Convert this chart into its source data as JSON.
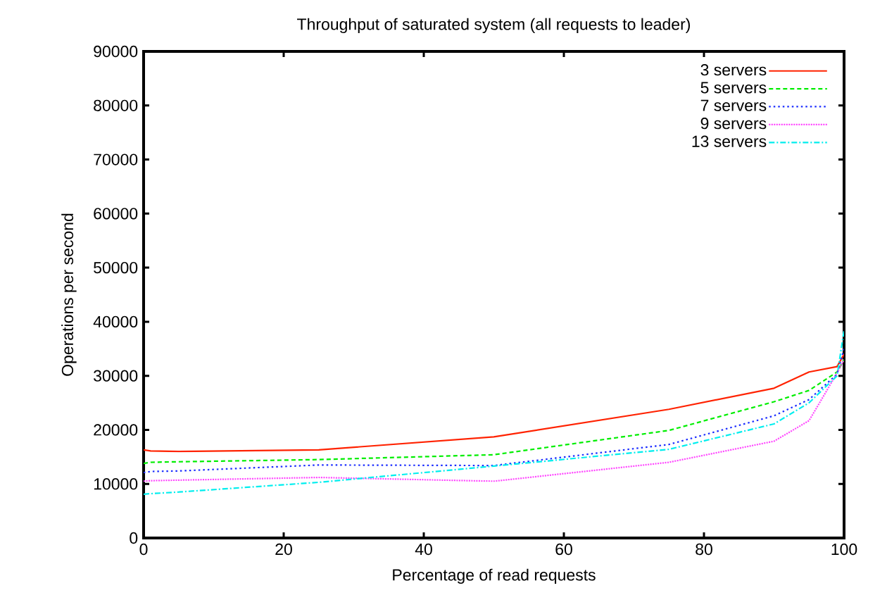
{
  "chart_data": {
    "type": "line",
    "title": "Throughput of saturated system (all requests to leader)",
    "xlabel": "Percentage of read requests",
    "ylabel": "Operations per second",
    "x": [
      0,
      1,
      5,
      25,
      50,
      75,
      90,
      95,
      99,
      100
    ],
    "series": [
      {
        "name": "3 servers",
        "color": "#ff2200",
        "line_style": "solid",
        "values": [
          16300,
          16100,
          16000,
          16300,
          18700,
          23800,
          27700,
          30700,
          31700,
          34000
        ]
      },
      {
        "name": "5 servers",
        "color": "#00ee00",
        "line_style": "dashed",
        "values": [
          13800,
          14000,
          14100,
          14500,
          15400,
          19900,
          25200,
          27300,
          30700,
          33000
        ]
      },
      {
        "name": "7 servers",
        "color": "#1a2cff",
        "line_style": "dotted",
        "values": [
          12100,
          12300,
          12400,
          13500,
          13400,
          17300,
          22600,
          25600,
          30300,
          35000
        ]
      },
      {
        "name": "9 servers",
        "color": "#ff44ff",
        "line_style": "dotted",
        "values": [
          10500,
          10600,
          10700,
          11200,
          10500,
          14000,
          17900,
          21700,
          30500,
          33000
        ]
      },
      {
        "name": "13 servers",
        "color": "#00eeee",
        "line_style": "dashdot",
        "values": [
          8100,
          8200,
          8500,
          10300,
          13300,
          16400,
          21100,
          25000,
          30000,
          38400
        ]
      }
    ],
    "xlim": [
      0,
      100
    ],
    "ylim": [
      0,
      90000
    ],
    "xticks": [
      0,
      20,
      40,
      60,
      80,
      100
    ],
    "yticks": [
      0,
      10000,
      20000,
      30000,
      40000,
      50000,
      60000,
      70000,
      80000,
      90000
    ],
    "grid": false,
    "legend": "top right"
  }
}
